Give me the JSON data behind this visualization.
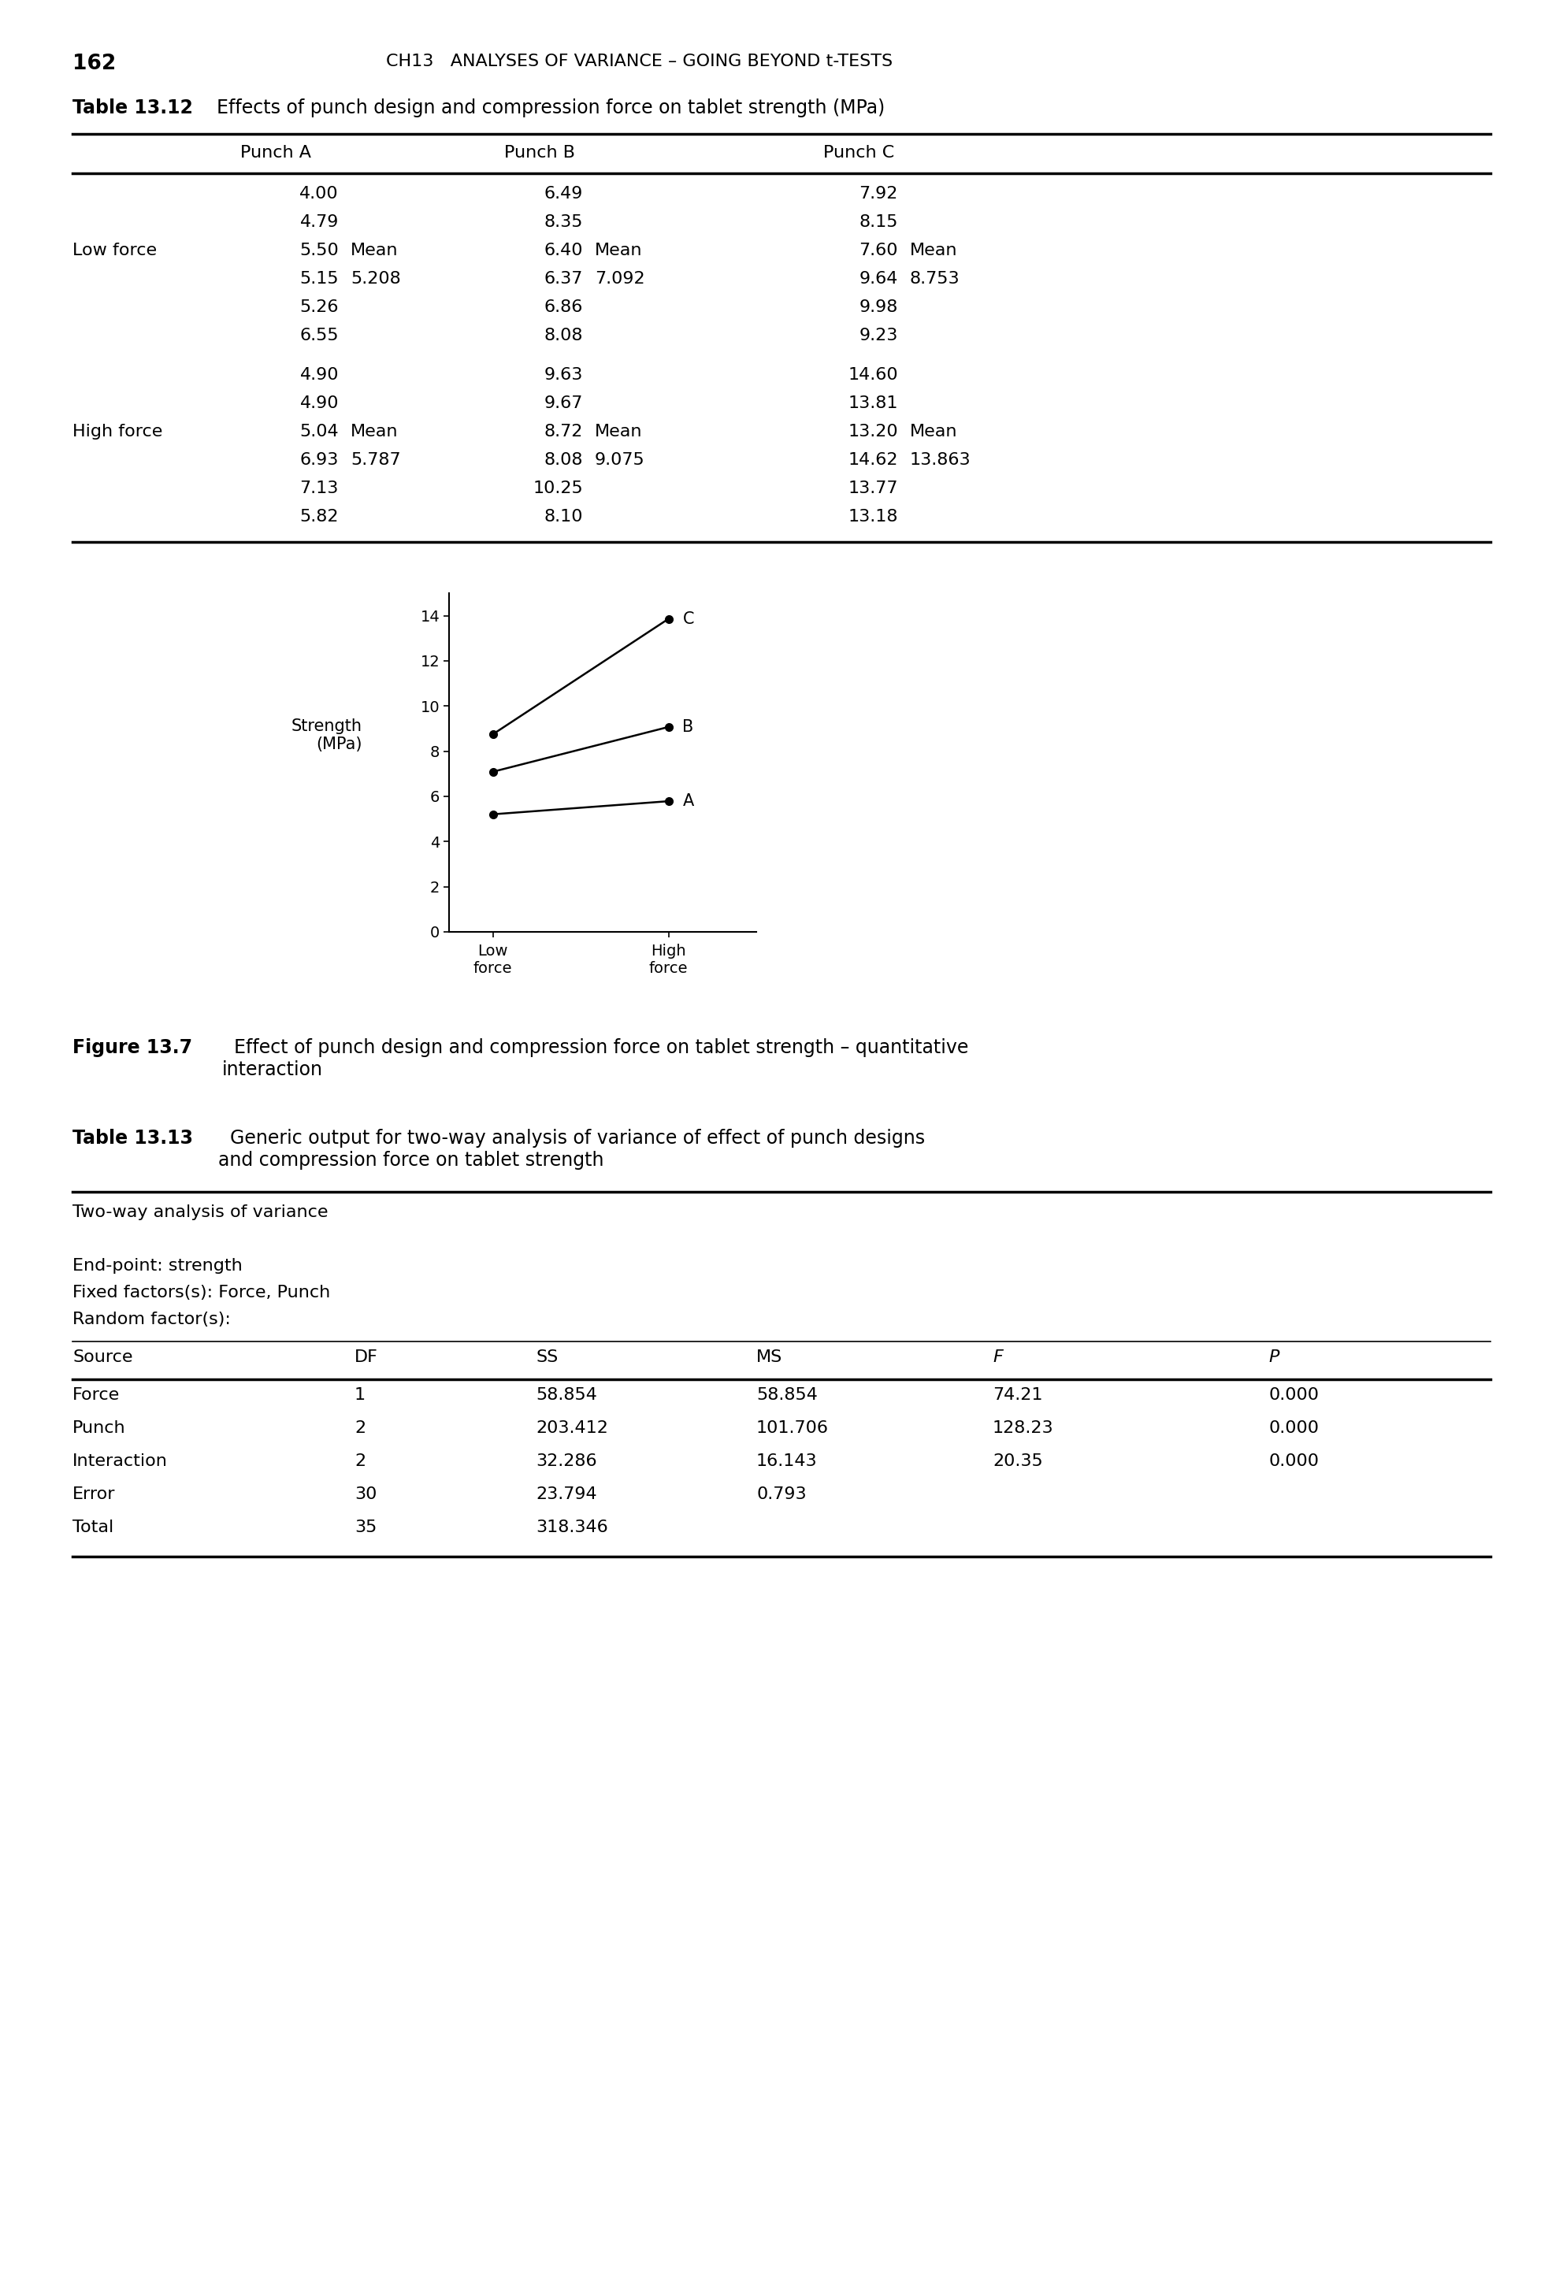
{
  "page_number": "162",
  "header": "CH13   ANALYSES OF VARIANCE – GOING BEYOND t-TESTS",
  "table1_title_bold": "Table 13.12",
  "table1_title_rest": "  Effects of punch design and compression force on tablet strength (MPa)",
  "table1_headers": [
    "Punch A",
    "Punch B",
    "Punch C"
  ],
  "table1_low_force_label": "Low force",
  "table1_high_force_label": "High force",
  "table1_low_force_data": [
    [
      "4.00",
      "",
      "6.49",
      "",
      "7.92",
      ""
    ],
    [
      "4.79",
      "",
      "8.35",
      "",
      "8.15",
      ""
    ],
    [
      "5.50",
      "Mean",
      "6.40",
      "Mean",
      "7.60",
      "Mean"
    ],
    [
      "5.15",
      "5.208",
      "6.37",
      "7.092",
      "9.64",
      "8.753"
    ],
    [
      "5.26",
      "",
      "6.86",
      "",
      "9.98",
      ""
    ],
    [
      "6.55",
      "",
      "8.08",
      "",
      "9.23",
      ""
    ]
  ],
  "table1_high_force_data": [
    [
      "4.90",
      "",
      "9.63",
      "",
      "14.60",
      ""
    ],
    [
      "4.90",
      "",
      "9.67",
      "",
      "13.81",
      ""
    ],
    [
      "5.04",
      "Mean",
      "8.72",
      "Mean",
      "13.20",
      "Mean"
    ],
    [
      "6.93",
      "5.787",
      "8.08",
      "9.075",
      "14.62",
      "13.863"
    ],
    [
      "7.13",
      "",
      "10.25",
      "",
      "13.77",
      ""
    ],
    [
      "5.82",
      "",
      "8.10",
      "",
      "13.18",
      ""
    ]
  ],
  "plot_xlabel_low": "Low\nforce",
  "plot_xlabel_high": "High\nforce",
  "plot_ylabel_line1": "Strength",
  "plot_ylabel_line2": "(MPa)",
  "plot_yticks": [
    0,
    2,
    4,
    6,
    8,
    10,
    12,
    14
  ],
  "plot_series": [
    {
      "label": "A",
      "low": 5.208,
      "high": 5.787
    },
    {
      "label": "B",
      "low": 7.092,
      "high": 9.075
    },
    {
      "label": "C",
      "low": 8.753,
      "high": 13.863
    }
  ],
  "fig_caption_bold": "Figure 13.7",
  "fig_caption_rest": "  Effect of punch design and compression force on tablet strength – quantitative\ninteraction",
  "table2_title_bold": "Table 13.13",
  "table2_title_rest": "  Generic output for two-way analysis of variance of effect of punch designs\nand compression force on tablet strength",
  "table2_intro": [
    "Two-way analysis of variance",
    "",
    "End-point: strength",
    "Fixed factors(s): Force, Punch",
    "Random factor(s):"
  ],
  "table2_col_headers": [
    "Source",
    "DF",
    "SS",
    "MS",
    "F",
    "P"
  ],
  "table2_rows": [
    [
      "Force",
      "1",
      "58.854",
      "58.854",
      "74.21",
      "0.000"
    ],
    [
      "Punch",
      "2",
      "203.412",
      "101.706",
      "128.23",
      "0.000"
    ],
    [
      "Interaction",
      "2",
      "32.286",
      "16.143",
      "20.35",
      "0.000"
    ],
    [
      "Error",
      "30",
      "23.794",
      "0.793",
      "",
      ""
    ],
    [
      "Total",
      "35",
      "318.346",
      "",
      "",
      ""
    ]
  ],
  "bg_color": "#ffffff",
  "text_color": "#000000"
}
